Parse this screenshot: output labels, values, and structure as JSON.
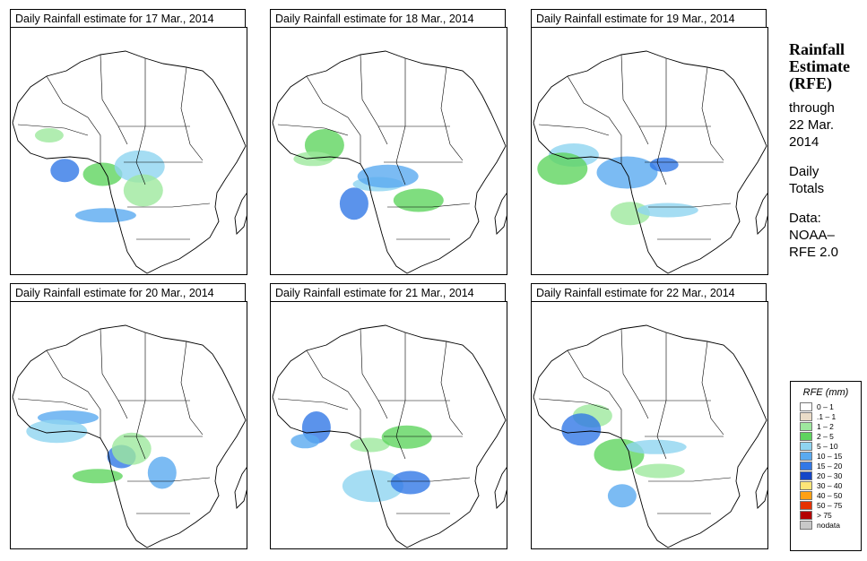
{
  "panels": [
    {
      "title": "Daily Rainfall estimate for  17 Mar., 2014"
    },
    {
      "title": "Daily Rainfall estimate for  18 Mar., 2014"
    },
    {
      "title": "Daily Rainfall estimate for  19 Mar., 2014"
    },
    {
      "title": "Daily Rainfall estimate for  20 Mar., 2014"
    },
    {
      "title": "Daily Rainfall estimate for  21 Mar., 2014"
    },
    {
      "title": "Daily Rainfall estimate for  22 Mar., 2014"
    }
  ],
  "side": {
    "heading1": "Rainfall",
    "heading2": "Estimate",
    "heading3": "(RFE)",
    "through": "through",
    "date1": "22 Mar.",
    "date2": "2014",
    "daily": "Daily",
    "totals": "Totals",
    "data_label": "Data:",
    "source1": "NOAA–",
    "source2": "RFE 2.0"
  },
  "legend": {
    "title": "RFE (mm)",
    "items": [
      {
        "label": "0 – 1",
        "color": "#ffffff"
      },
      {
        "label": ".1 – 1",
        "color": "#eadcc8"
      },
      {
        "label": "1 – 2",
        "color": "#9ee89e"
      },
      {
        "label": "2 – 5",
        "color": "#5fd45f"
      },
      {
        "label": "5 – 10",
        "color": "#8fd4f0"
      },
      {
        "label": "10 – 15",
        "color": "#5aaaf0"
      },
      {
        "label": "15 – 20",
        "color": "#3278e6"
      },
      {
        "label": "20 – 30",
        "color": "#1446c8"
      },
      {
        "label": "30 – 40",
        "color": "#ffe678"
      },
      {
        "label": "40 – 50",
        "color": "#ffa014"
      },
      {
        "label": "50 – 75",
        "color": "#e63200"
      },
      {
        "label": "> 75",
        "color": "#b40000"
      },
      {
        "label": "nodata",
        "color": "#c8c8c8"
      }
    ]
  }
}
